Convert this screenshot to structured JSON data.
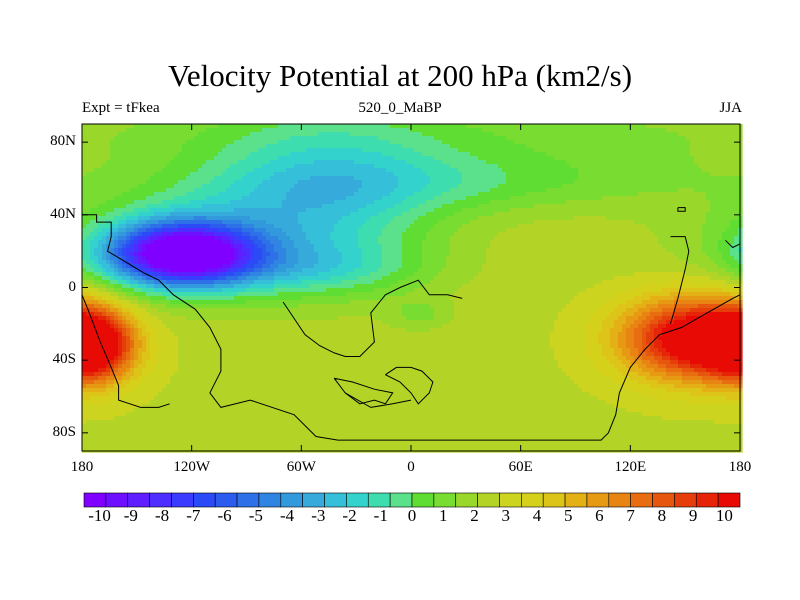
{
  "title": "Velocity Potential at 200 hPa (km2/s)",
  "subtitle_left": "Expt = tFkea",
  "subtitle_center": "520_0_MaBP",
  "subtitle_right": "JJA",
  "map": {
    "projection": "cylindrical-equidistant",
    "lon_range": [
      -180,
      180
    ],
    "lat_range": [
      -90,
      90
    ],
    "lat_ticks": [
      {
        "value": 80,
        "label": "80N"
      },
      {
        "value": 40,
        "label": "40N"
      },
      {
        "value": 0,
        "label": "0"
      },
      {
        "value": -40,
        "label": "40S"
      },
      {
        "value": -80,
        "label": "80S"
      }
    ],
    "lon_ticks": [
      {
        "value": -180,
        "label": "180"
      },
      {
        "value": -120,
        "label": "120W"
      },
      {
        "value": -60,
        "label": "60W"
      },
      {
        "value": 0,
        "label": "0"
      },
      {
        "value": 60,
        "label": "60E"
      },
      {
        "value": 120,
        "label": "120E"
      },
      {
        "value": 180,
        "label": "180"
      }
    ],
    "field_background": 2.5,
    "field_centers": [
      {
        "name": "central-america-low",
        "lon": -125,
        "lat": 18,
        "value": -12.5,
        "sx": 28,
        "sy": 12
      },
      {
        "name": "east-pacific-low-broad",
        "lon": -110,
        "lat": 28,
        "value": -3,
        "sx": 60,
        "sy": 22
      },
      {
        "name": "north-atlantic-low",
        "lon": -45,
        "lat": 50,
        "value": -3,
        "sx": 45,
        "sy": 30
      },
      {
        "name": "polar-low",
        "lon": 0,
        "lat": 85,
        "value": -1.5,
        "sx": 180,
        "sy": 15
      },
      {
        "name": "arctic-band",
        "lon": 20,
        "lat": 58,
        "value": -2,
        "sx": 90,
        "sy": 12
      },
      {
        "name": "south-pacific-high",
        "lon": -175,
        "lat": -32,
        "value": 7.5,
        "sx": 16,
        "sy": 14
      },
      {
        "name": "west-pacific-high",
        "lon": 155,
        "lat": -28,
        "value": 8.5,
        "sx": 28,
        "sy": 16
      },
      {
        "name": "african-dip",
        "lon": 5,
        "lat": -15,
        "value": -1.2,
        "sx": 12,
        "sy": 6
      },
      {
        "name": "tropical-band-low",
        "lon": -50,
        "lat": 10,
        "value": -2.0,
        "sx": 40,
        "sy": 10
      }
    ],
    "coastline_color": "#000000",
    "coastlines": [
      [
        [
          -180,
          40
        ],
        [
          -172,
          40
        ],
        [
          -172,
          36
        ],
        [
          -164,
          36
        ],
        [
          -164,
          28
        ],
        [
          -166,
          20
        ],
        [
          -156,
          14
        ],
        [
          -146,
          8
        ],
        [
          -138,
          4
        ],
        [
          -130,
          -4
        ],
        [
          -118,
          -12
        ],
        [
          -110,
          -22
        ],
        [
          -104,
          -34
        ],
        [
          -104,
          -46
        ],
        [
          -110,
          -58
        ],
        [
          -104,
          -66
        ],
        [
          -88,
          -62
        ],
        [
          -64,
          -70
        ],
        [
          -52,
          -82
        ],
        [
          -40,
          -84
        ],
        [
          70,
          -84
        ],
        [
          104,
          -84
        ],
        [
          108,
          -80
        ],
        [
          112,
          -70
        ],
        [
          114,
          -58
        ],
        [
          120,
          -44
        ],
        [
          128,
          -34
        ],
        [
          136,
          -26
        ],
        [
          148,
          -22
        ],
        [
          162,
          -14
        ],
        [
          176,
          -6
        ],
        [
          180,
          -4
        ]
      ],
      [
        [
          -180,
          -4
        ],
        [
          -176,
          -14
        ],
        [
          -170,
          -30
        ],
        [
          -164,
          -44
        ],
        [
          -160,
          -54
        ],
        [
          -160,
          -62
        ],
        [
          -148,
          -66
        ],
        [
          -138,
          -66
        ],
        [
          -132,
          -64
        ]
      ],
      [
        [
          -70,
          -8
        ],
        [
          -66,
          -14
        ],
        [
          -58,
          -26
        ],
        [
          -50,
          -32
        ],
        [
          -42,
          -36
        ],
        [
          -36,
          -38
        ],
        [
          -28,
          -38
        ],
        [
          -20,
          -30
        ],
        [
          -22,
          -14
        ],
        [
          -14,
          -4
        ],
        [
          -6,
          0
        ],
        [
          4,
          4
        ],
        [
          10,
          -4
        ],
        [
          20,
          -4
        ],
        [
          28,
          -6
        ]
      ],
      [
        [
          -14,
          -48
        ],
        [
          -6,
          -52
        ],
        [
          0,
          -58
        ],
        [
          4,
          -64
        ],
        [
          10,
          -58
        ],
        [
          12,
          -52
        ],
        [
          6,
          -46
        ],
        [
          0,
          -44
        ],
        [
          -8,
          -44
        ],
        [
          -14,
          -48
        ]
      ],
      [
        [
          -42,
          -50
        ],
        [
          -36,
          -58
        ],
        [
          -28,
          -64
        ],
        [
          -20,
          -62
        ],
        [
          -14,
          -64
        ],
        [
          -10,
          -58
        ],
        [
          -20,
          -56
        ],
        [
          -32,
          -52
        ],
        [
          -42,
          -50
        ]
      ],
      [
        [
          -36,
          -58
        ],
        [
          -22,
          -66
        ],
        [
          -10,
          -64
        ],
        [
          0,
          -62
        ]
      ],
      [
        [
          142,
          28
        ],
        [
          150,
          28
        ],
        [
          152,
          20
        ],
        [
          150,
          10
        ],
        [
          146,
          -6
        ],
        [
          142,
          -20
        ]
      ],
      [
        [
          172,
          26
        ],
        [
          176,
          22
        ],
        [
          180,
          24
        ]
      ],
      [
        [
          146,
          44
        ],
        [
          150,
          44
        ],
        [
          150,
          42
        ],
        [
          146,
          42
        ],
        [
          146,
          44
        ]
      ]
    ]
  },
  "colorbar": {
    "colors": [
      "#7f00ff",
      "#6f0fff",
      "#5e1eff",
      "#4d2dff",
      "#3c3cff",
      "#2b4bf7",
      "#2b5cee",
      "#2d70e8",
      "#3085e2",
      "#3399dd",
      "#36abdb",
      "#36bfd8",
      "#33d2cc",
      "#3dddb0",
      "#5be08c",
      "#60dd33",
      "#79dc30",
      "#99d82b",
      "#b3d426",
      "#cdd41f",
      "#d5d01a",
      "#dcc418",
      "#e3b016",
      "#e69a14",
      "#e88512",
      "#e86d10",
      "#e6560c",
      "#e53e0a",
      "#e62408",
      "#e80a05"
    ],
    "labels": [
      "-10",
      "-9",
      "-8",
      "-7",
      "-6",
      "-5",
      "-4",
      "-3",
      "-2",
      "-1",
      "0",
      "1",
      "2",
      "3",
      "4",
      "5",
      "6",
      "7",
      "8",
      "9",
      "10"
    ]
  }
}
